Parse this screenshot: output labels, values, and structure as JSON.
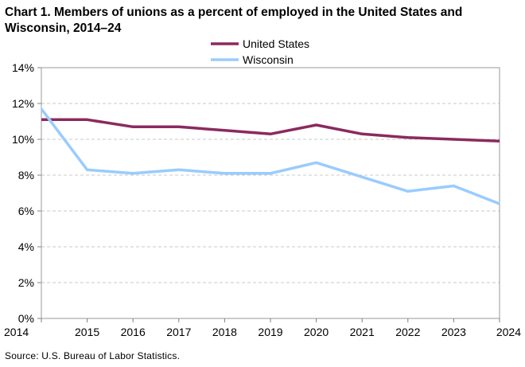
{
  "title": {
    "line1": "Chart 1. Members of unions as a percent of employed  in the United States and",
    "line2": "Wisconsin, 2014–24"
  },
  "source": "Source:  U.S. Bureau  of Labor Statistics.",
  "chart_data": {
    "type": "line",
    "title": "Chart 1. Members of unions as a percent of employed  in the United States and Wisconsin, 2014–24",
    "xlabel": "",
    "ylabel": "",
    "x": [
      "2014",
      "2015",
      "2016",
      "2017",
      "2018",
      "2019",
      "2020",
      "2021",
      "2022",
      "2023",
      "2024"
    ],
    "y_ticks": [
      "0%",
      "2%",
      "4%",
      "6%",
      "8%",
      "10%",
      "12%",
      "14%"
    ],
    "ylim": [
      0,
      14
    ],
    "grid": "horizontal dashed",
    "legend_position": "top-center",
    "series": [
      {
        "name": "United States",
        "color": "#8B2A5E",
        "values": [
          11.1,
          11.1,
          10.7,
          10.7,
          10.5,
          10.3,
          10.8,
          10.3,
          10.1,
          10.0,
          9.9
        ]
      },
      {
        "name": "Wisconsin",
        "color": "#99CCFF",
        "values": [
          11.7,
          8.3,
          8.1,
          8.3,
          8.1,
          8.1,
          8.7,
          7.9,
          7.1,
          7.4,
          6.4
        ]
      }
    ]
  }
}
